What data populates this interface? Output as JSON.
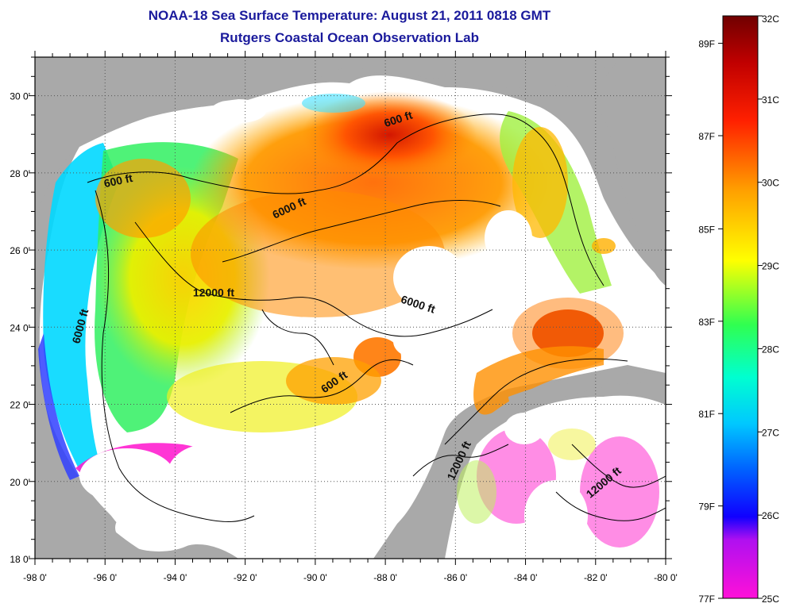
{
  "title": {
    "line1": "NOAA-18 Sea Surface Temperature:  August 21, 2011 0818 GMT",
    "line2": "Rutgers Coastal Ocean Observation Lab"
  },
  "map": {
    "lon_range": [
      -98,
      -80
    ],
    "lat_range": [
      18,
      31
    ],
    "lon_ticks": [
      {
        "value": -98,
        "label": "-98 0'"
      },
      {
        "value": -96,
        "label": "-96 0'"
      },
      {
        "value": -94,
        "label": "-94 0'"
      },
      {
        "value": -92,
        "label": "-92 0'"
      },
      {
        "value": -90,
        "label": "-90 0'"
      },
      {
        "value": -88,
        "label": "-88 0'"
      },
      {
        "value": -86,
        "label": "-86 0'"
      },
      {
        "value": -84,
        "label": "-84 0'"
      },
      {
        "value": -82,
        "label": "-82 0'"
      },
      {
        "value": -80,
        "label": "-80 0'"
      }
    ],
    "lat_ticks": [
      {
        "value": 18,
        "label": "18 0'"
      },
      {
        "value": 20,
        "label": "20 0'"
      },
      {
        "value": 22,
        "label": "22 0'"
      },
      {
        "value": 24,
        "label": "24 0'"
      },
      {
        "value": 26,
        "label": "26 0'"
      },
      {
        "value": 28,
        "label": "28 0'"
      },
      {
        "value": 30,
        "label": "30 0'"
      }
    ],
    "contour_labels": [
      {
        "text": "600 ft",
        "lon": -95.6,
        "lat": 27.7,
        "angle": -12
      },
      {
        "text": "600 ft",
        "lon": -87.6,
        "lat": 29.3,
        "angle": -18
      },
      {
        "text": "6000 ft",
        "lon": -90.7,
        "lat": 27.0,
        "angle": -25
      },
      {
        "text": "12000 ft",
        "lon": -92.9,
        "lat": 24.8,
        "angle": 0
      },
      {
        "text": "6000 ft",
        "lon": -87.1,
        "lat": 24.5,
        "angle": 18
      },
      {
        "text": "6000 ft",
        "lon": -96.6,
        "lat": 24.0,
        "angle": -75
      },
      {
        "text": "600 ft",
        "lon": -89.4,
        "lat": 22.5,
        "angle": -35
      },
      {
        "text": "12000 ft",
        "lon": -85.8,
        "lat": 20.5,
        "angle": -65
      },
      {
        "text": "12000 ft",
        "lon": -81.7,
        "lat": 19.9,
        "angle": -40
      }
    ]
  },
  "colorbar": {
    "left_labels": [
      {
        "label": "89F",
        "value": 31.67
      },
      {
        "label": "87F",
        "value": 30.56
      },
      {
        "label": "85F",
        "value": 29.44
      },
      {
        "label": "83F",
        "value": 28.33
      },
      {
        "label": "81F",
        "value": 27.22
      },
      {
        "label": "79F",
        "value": 26.11
      },
      {
        "label": "77F",
        "value": 25.0
      }
    ],
    "right_labels": [
      {
        "label": "32C",
        "value": 32
      },
      {
        "label": "31C",
        "value": 31
      },
      {
        "label": "30C",
        "value": 30
      },
      {
        "label": "29C",
        "value": 29
      },
      {
        "label": "28C",
        "value": 28
      },
      {
        "label": "27C",
        "value": 27
      },
      {
        "label": "26C",
        "value": 26
      },
      {
        "label": "25C",
        "value": 25
      }
    ],
    "range": [
      25,
      32
    ],
    "colors": [
      "#ff10d8",
      "#7000ff",
      "#0000ff",
      "#00c8ff",
      "#00ffd0",
      "#30ff40",
      "#ffff00",
      "#ff9000",
      "#ff2000",
      "#b00000",
      "#700000"
    ]
  }
}
